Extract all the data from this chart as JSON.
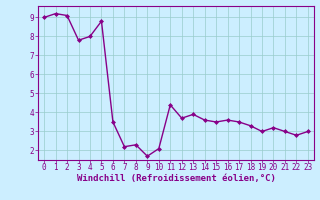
{
  "x": [
    0,
    1,
    2,
    3,
    4,
    5,
    6,
    7,
    8,
    9,
    10,
    11,
    12,
    13,
    14,
    15,
    16,
    17,
    18,
    19,
    20,
    21,
    22,
    23
  ],
  "y": [
    9.0,
    9.2,
    9.1,
    7.8,
    8.0,
    8.8,
    3.5,
    2.2,
    2.3,
    1.7,
    2.1,
    4.4,
    3.7,
    3.9,
    3.6,
    3.5,
    3.6,
    3.5,
    3.3,
    3.0,
    3.2,
    3.0,
    2.8,
    3.0
  ],
  "line_color": "#880088",
  "marker": "D",
  "marker_size": 2.0,
  "bg_color": "#cceeff",
  "grid_color": "#99cccc",
  "xlabel": "Windchill (Refroidissement éolien,°C)",
  "xlim_min": -0.5,
  "xlim_max": 23.5,
  "ylim_min": 1.5,
  "ylim_max": 9.6,
  "yticks": [
    2,
    3,
    4,
    5,
    6,
    7,
    8,
    9
  ],
  "xticks": [
    0,
    1,
    2,
    3,
    4,
    5,
    6,
    7,
    8,
    9,
    10,
    11,
    12,
    13,
    14,
    15,
    16,
    17,
    18,
    19,
    20,
    21,
    22,
    23
  ],
  "xlabel_fontsize": 6.5,
  "tick_fontsize": 5.5,
  "line_width": 1.0,
  "spine_color": "#880088"
}
